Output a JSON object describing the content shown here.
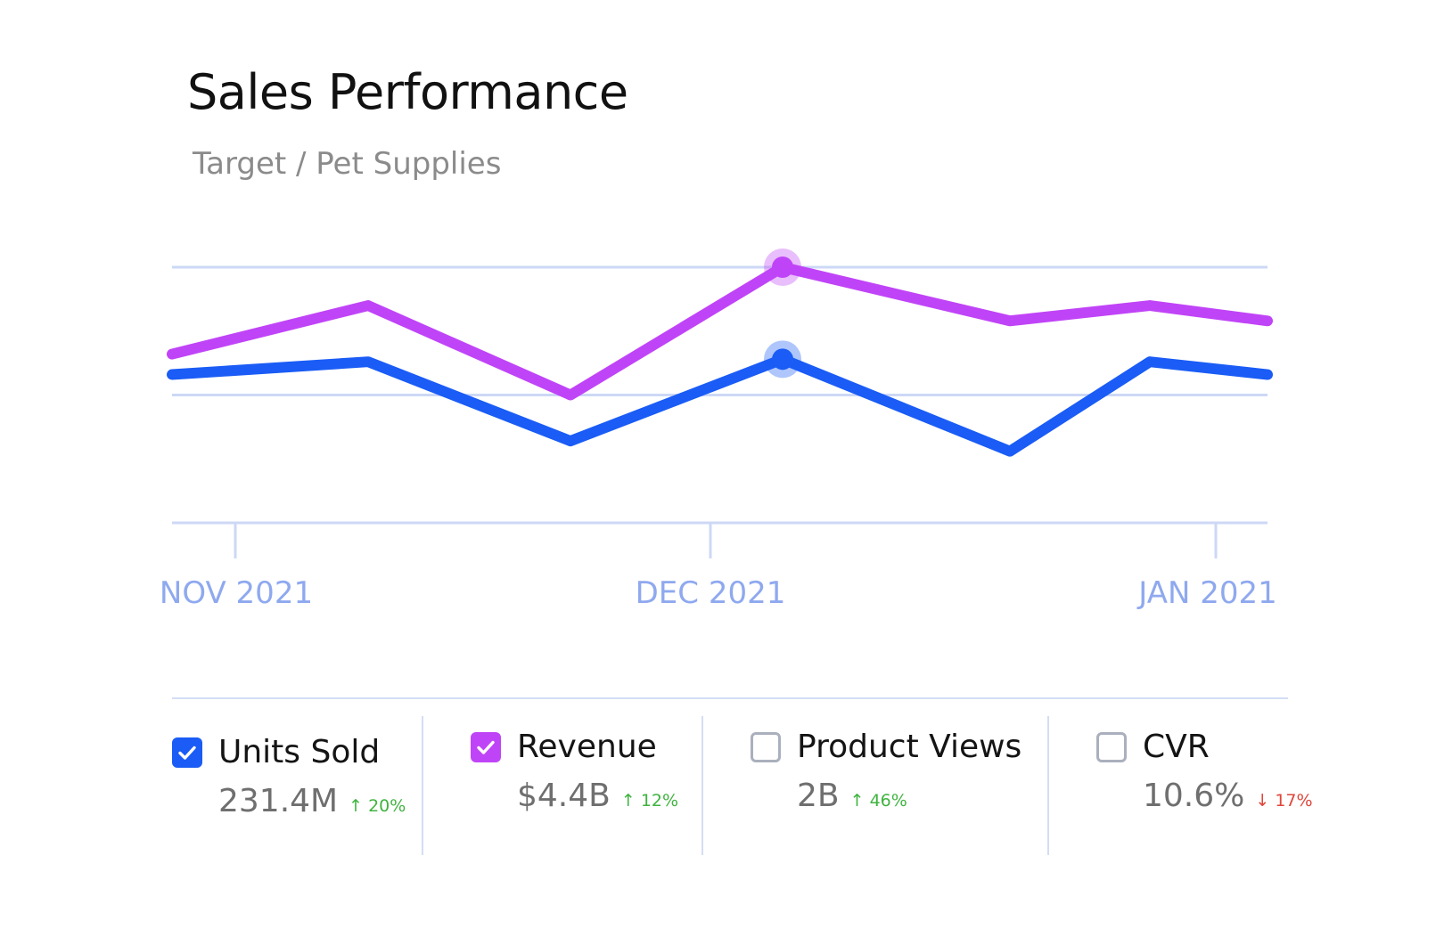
{
  "header": {
    "title": "Sales Performance",
    "subtitle": "Target / Pet Supplies"
  },
  "chart_data": {
    "type": "line",
    "x_ticks": [
      "NOV 2021",
      "DEC 2021",
      "JAN 2021"
    ],
    "grid": true,
    "series": [
      {
        "name": "Revenue",
        "color": "#c044f7",
        "values": [
          0.66,
          0.85,
          0.5,
          1.0,
          0.79,
          0.85,
          0.79
        ],
        "highlight_index": 3
      },
      {
        "name": "Units Sold",
        "color": "#1a5cf5",
        "values": [
          0.58,
          0.63,
          0.32,
          0.64,
          0.28,
          0.63,
          0.58
        ],
        "highlight_index": 3
      }
    ],
    "ylim": [
      0,
      1
    ]
  },
  "metrics": [
    {
      "label": "Units Sold",
      "value": "231.4M",
      "change": "↑ 20%",
      "trend": "up",
      "checked": true,
      "color": "#1a5cf5"
    },
    {
      "label": "Revenue",
      "value": "$4.4B",
      "change": "↑ 12%",
      "trend": "up",
      "checked": true,
      "color": "#c044f7"
    },
    {
      "label": "Product Views",
      "value": "2B",
      "change": "↑ 46%",
      "trend": "up",
      "checked": false,
      "color": "#aab0bd"
    },
    {
      "label": "CVR",
      "value": "10.6%",
      "change": "↓ 17%",
      "trend": "down",
      "checked": false,
      "color": "#aab0bd"
    }
  ]
}
